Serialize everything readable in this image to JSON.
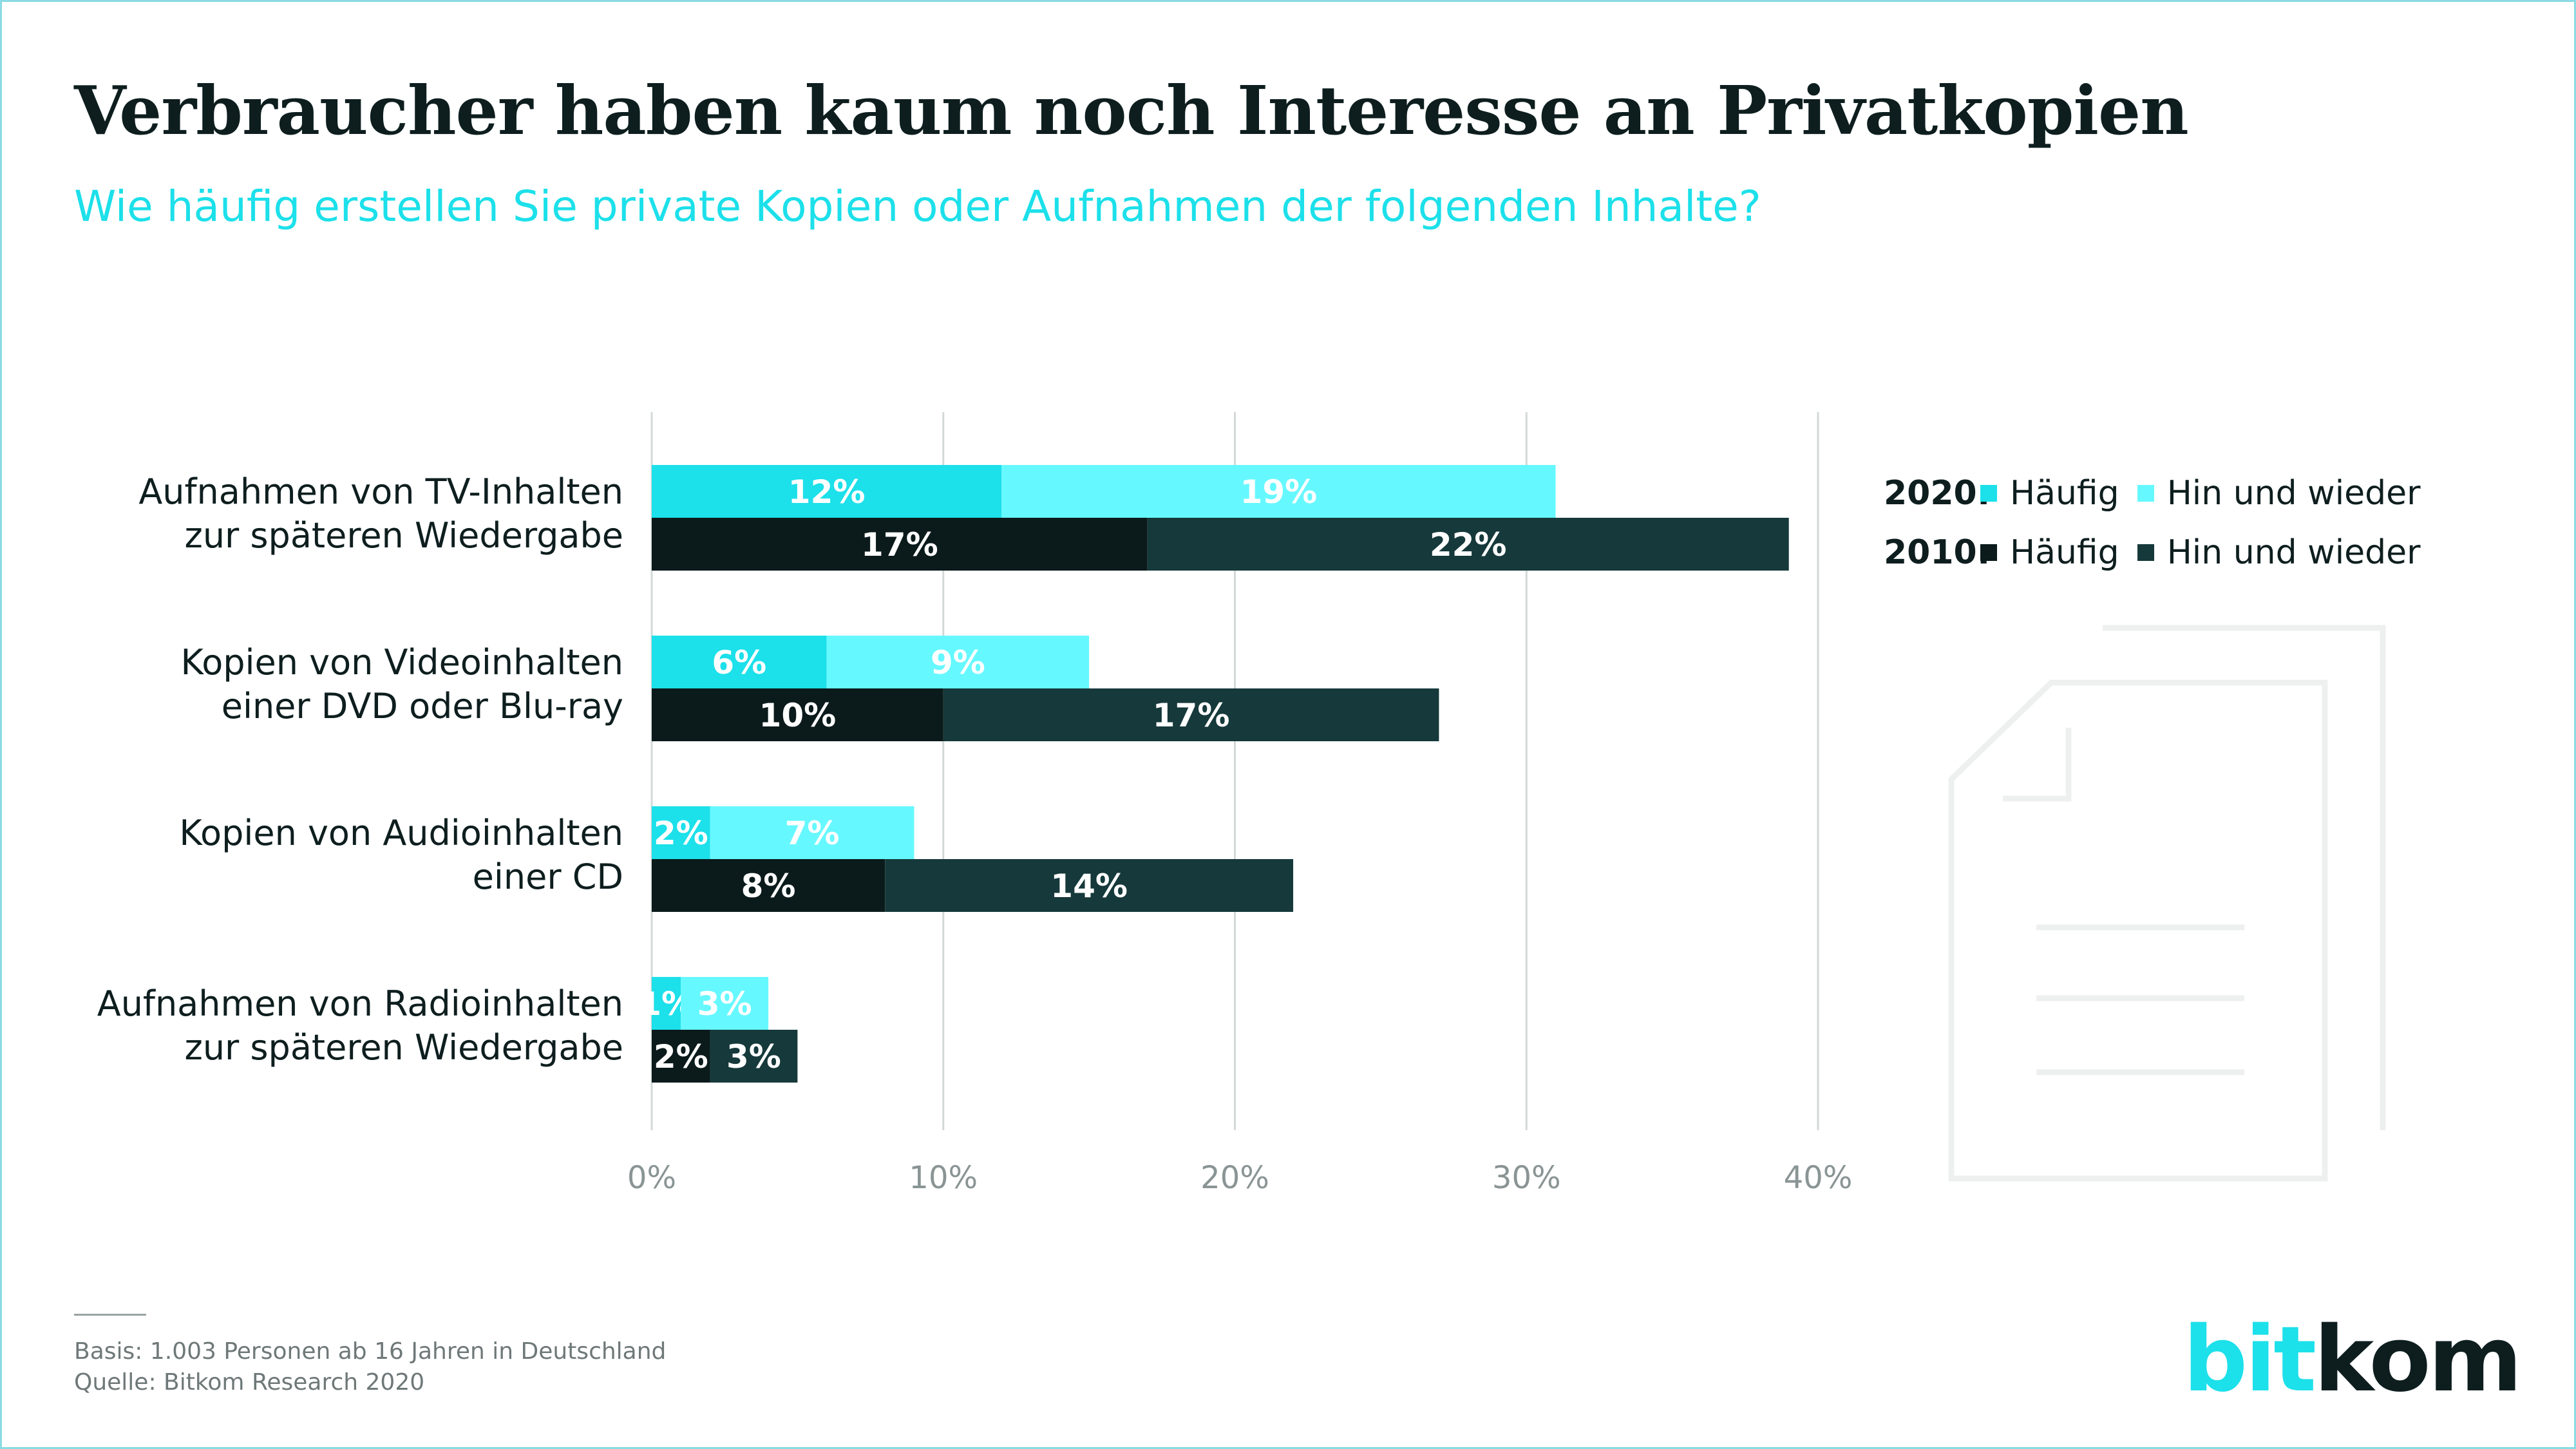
{
  "title": "Verbraucher haben kaum noch Interesse an Privatkopien",
  "subtitle": "Wie häufig erstellen Sie private Kopien oder Aufnahmen der folgenden Inhalte?",
  "legend": {
    "rows": [
      {
        "year": "2020:",
        "items": [
          "Häufig",
          "Hin und wieder"
        ],
        "colors": [
          "#1ce0ea",
          "#66f8ff"
        ]
      },
      {
        "year": "2010:",
        "items": [
          "Häufig",
          "Hin und wieder"
        ],
        "colors": [
          "#0b1a1b",
          "#16393b"
        ]
      }
    ]
  },
  "footer": {
    "basis": "Basis: 1.003 Personen ab 16 Jahren in Deutschland",
    "source": "Quelle: Bitkom Research 2020"
  },
  "logo": {
    "part1": "bit",
    "part2": "kom"
  },
  "icon": "document-icon",
  "chart_data": {
    "type": "bar",
    "orientation": "horizontal",
    "stacked": true,
    "categories": [
      [
        "Aufnahmen von TV-Inhalten",
        "zur späteren Wiedergabe"
      ],
      [
        "Kopien von Videoinhalten",
        "einer DVD oder Blu-ray"
      ],
      [
        "Kopien von Audioinhalten",
        "einer CD"
      ],
      [
        "Aufnahmen von Radioinhalten",
        "zur späteren Wiedergabe"
      ]
    ],
    "groups": [
      {
        "year": "2020",
        "series": [
          {
            "name": "Häufig",
            "values": [
              12,
              6,
              2,
              1
            ],
            "color": "#1ce0ea"
          },
          {
            "name": "Hin und wieder",
            "values": [
              19,
              9,
              7,
              3
            ],
            "color": "#66f8ff"
          }
        ]
      },
      {
        "year": "2010",
        "series": [
          {
            "name": "Häufig",
            "values": [
              17,
              10,
              8,
              2
            ],
            "color": "#0b1a1b"
          },
          {
            "name": "Hin und wieder",
            "values": [
              22,
              17,
              14,
              3
            ],
            "color": "#16393b"
          }
        ]
      }
    ],
    "value_suffix": "%",
    "xlim": [
      0,
      40
    ],
    "xticks": [
      0,
      10,
      20,
      30,
      40
    ],
    "xtick_labels": [
      "0%",
      "10%",
      "20%",
      "30%",
      "40%"
    ],
    "grid": true,
    "legend_position": "right"
  }
}
